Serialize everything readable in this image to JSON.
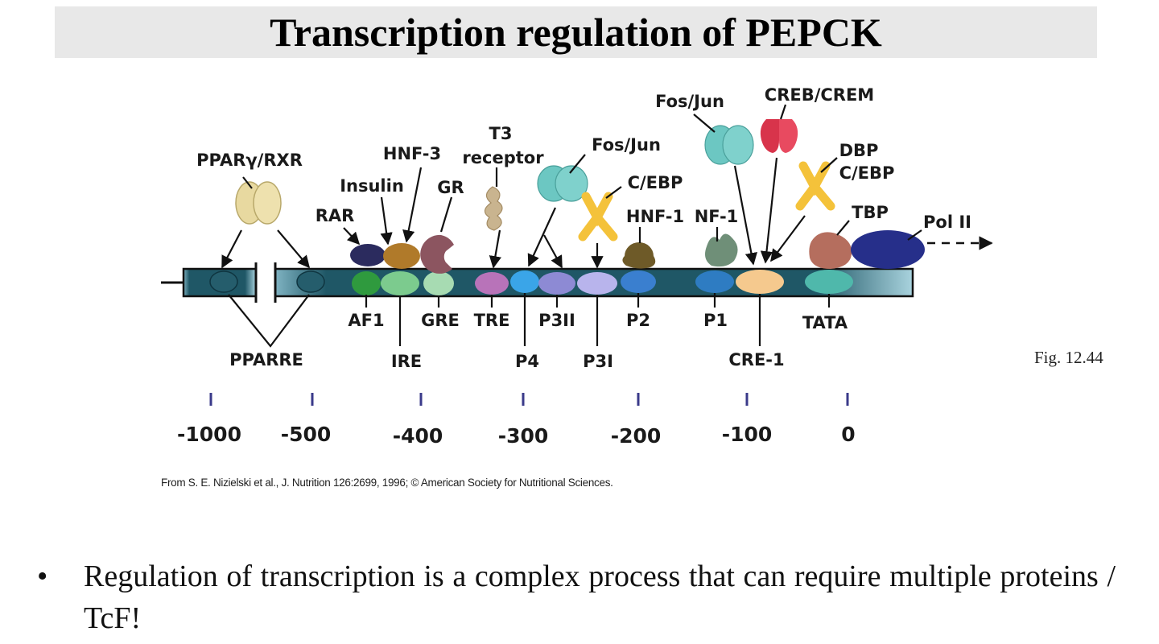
{
  "title": "Transcription regulation of PEPCK",
  "fig_caption": "Fig. 12.44",
  "citation": "From S. E. Nizielski et al., J. Nutrition 126:2699, 1996; © American Society for Nutritional Sciences.",
  "bullet": {
    "marker": "•",
    "text": "Regulation of transcription is a complex process that can require multiple proteins / TcF!"
  },
  "proteins": {
    "ppar_rxr": "PPARγ/RXR",
    "rar": "RAR",
    "insulin": "Insulin",
    "hnf3": "HNF-3",
    "gr": "GR",
    "t3_receptor_line1": "T3",
    "t3_receptor_line2": "receptor",
    "fos_jun_1": "Fos/Jun",
    "cebp_1": "C/EBP",
    "hnf1": "HNF-1",
    "nf1": "NF-1",
    "fos_jun_2": "Fos/Jun",
    "creb_crem": "CREB/CREM",
    "dbp": "DBP",
    "cebp_2": "C/EBP",
    "tbp": "TBP",
    "pol2": "Pol II"
  },
  "elements": {
    "af1": "AF1",
    "gre": "GRE",
    "tre": "TRE",
    "p3ii": "P3II",
    "p2": "P2",
    "p1": "P1",
    "tata": "TATA",
    "pparre": "PPARRE",
    "ire": "IRE",
    "p4": "P4",
    "p3i": "P3I",
    "cre1": "CRE-1"
  },
  "scale_ticks": [
    "-1000",
    "-500",
    "-400",
    "-300",
    "-200",
    "-100",
    "0"
  ],
  "colors": {
    "dna_bar": "#1f5766",
    "ppar_rxr": "#e8d9a0",
    "rar": "#2b2b5e",
    "insulin": "#b07a2a",
    "gr": "#8c5560",
    "t3_receptor": "#c9b48f",
    "fos_jun": "#6cc7c2",
    "cebp": "#f4c23a",
    "hnf1": "#6e5a28",
    "nf1": "#6f8f78",
    "creb_crem": "#d8344b",
    "tbp": "#b56e5e",
    "pol2": "#262f8a"
  }
}
